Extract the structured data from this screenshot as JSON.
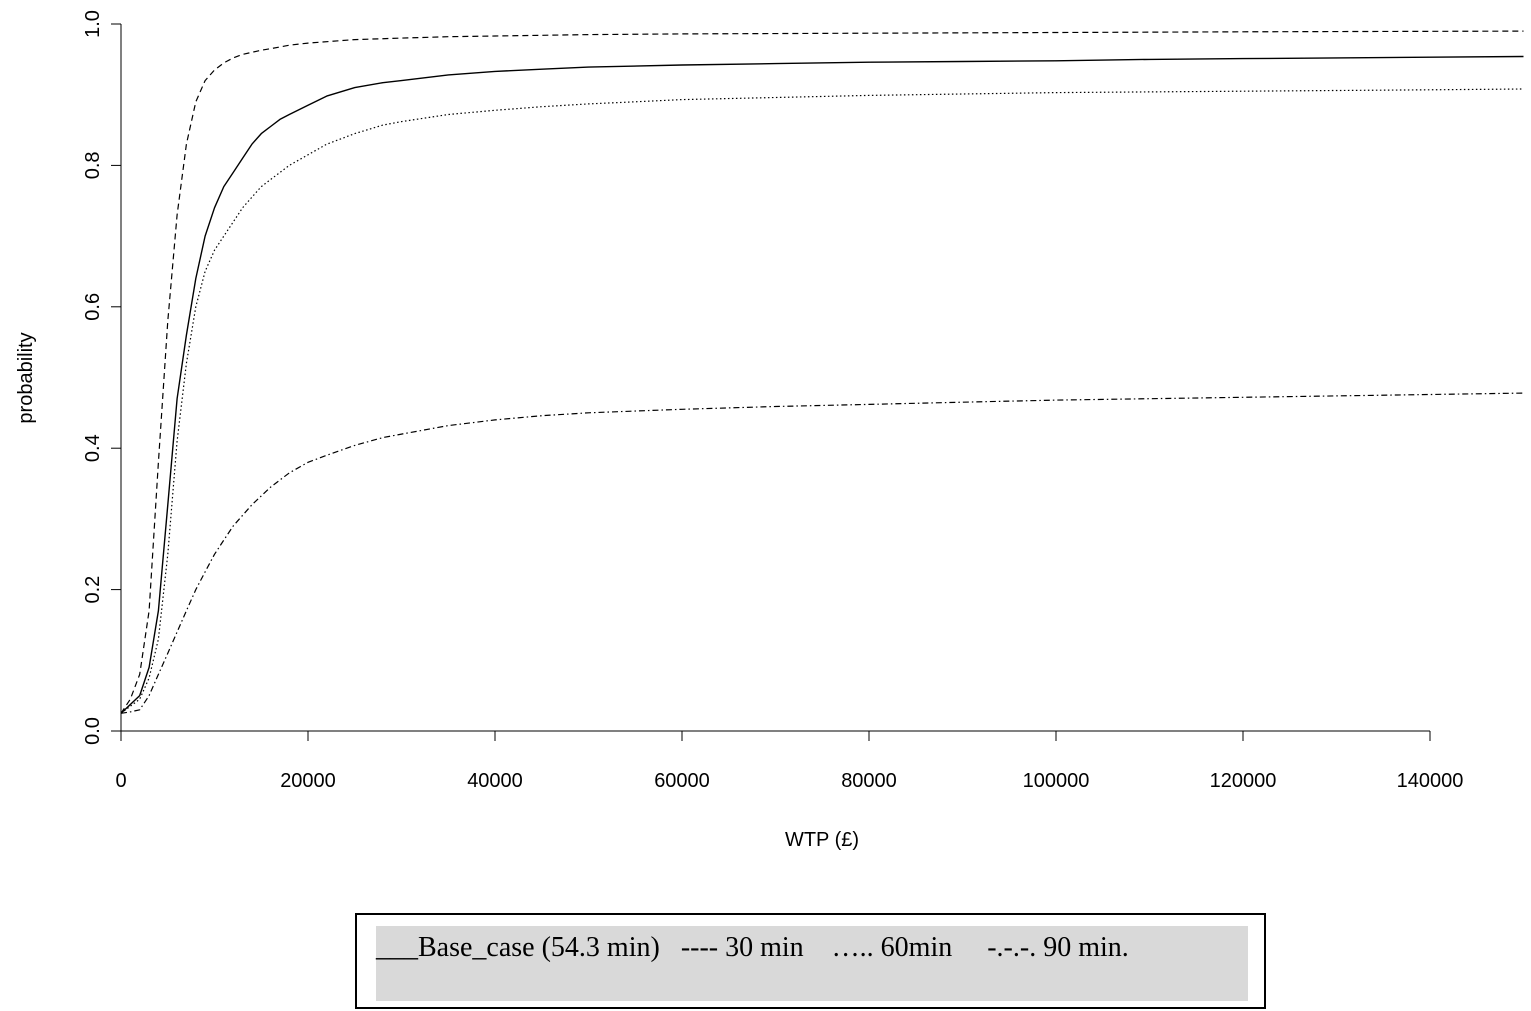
{
  "chart_data": {
    "type": "line",
    "title": "",
    "xlabel": "WTP (£)",
    "ylabel": "probability",
    "xlim": [
      0,
      150000
    ],
    "ylim": [
      0,
      1
    ],
    "x_ticks": [
      0,
      20000,
      40000,
      60000,
      80000,
      100000,
      120000,
      140000
    ],
    "x_tick_labels": [
      "0",
      "20000",
      "40000",
      "60000",
      "80000",
      "100000",
      "120000",
      "140000"
    ],
    "y_ticks": [
      0,
      0.2,
      0.4,
      0.6,
      0.8,
      1.0
    ],
    "y_tick_labels": [
      "0.0",
      "0.2",
      "0.4",
      "0.6",
      "0.8",
      "1.0"
    ],
    "grid": false,
    "legend_text": "___Base_case (54.3 min)   ---- 30 min    ….. 60min     -.-.-. 90 min.",
    "legend_placement": "bottom-center",
    "series": [
      {
        "style": "solid",
        "x": [
          0,
          2000,
          3000,
          4000,
          5000,
          6000,
          7000,
          8000,
          9000,
          10000,
          11000,
          12000,
          13000,
          14000,
          15000,
          16000,
          17000,
          18000,
          20000,
          22000,
          25000,
          28000,
          30000,
          35000,
          40000,
          45000,
          50000,
          60000,
          70000,
          80000,
          90000,
          100000,
          110000,
          120000,
          130000,
          140000,
          150000
        ],
        "y": [
          0.025,
          0.05,
          0.09,
          0.17,
          0.32,
          0.47,
          0.56,
          0.64,
          0.7,
          0.74,
          0.77,
          0.79,
          0.81,
          0.83,
          0.845,
          0.855,
          0.865,
          0.872,
          0.885,
          0.898,
          0.91,
          0.917,
          0.92,
          0.928,
          0.933,
          0.936,
          0.939,
          0.942,
          0.944,
          0.946,
          0.947,
          0.948,
          0.95,
          0.951,
          0.952,
          0.953,
          0.954
        ]
      },
      {
        "style": "dashed",
        "x": [
          0,
          1000,
          2000,
          3000,
          4000,
          5000,
          6000,
          7000,
          8000,
          9000,
          10000,
          11000,
          12000,
          13000,
          14000,
          15000,
          16000,
          18000,
          20000,
          25000,
          30000,
          35000,
          40000,
          50000,
          60000,
          80000,
          100000,
          120000,
          150000
        ],
        "y": [
          0.025,
          0.045,
          0.08,
          0.17,
          0.38,
          0.58,
          0.73,
          0.83,
          0.89,
          0.92,
          0.935,
          0.945,
          0.952,
          0.957,
          0.96,
          0.963,
          0.965,
          0.97,
          0.973,
          0.978,
          0.98,
          0.982,
          0.983,
          0.985,
          0.986,
          0.987,
          0.988,
          0.989,
          0.99
        ]
      },
      {
        "style": "dotted",
        "x": [
          0,
          2000,
          3000,
          4000,
          5000,
          6000,
          7000,
          8000,
          9000,
          10000,
          11000,
          12000,
          13000,
          14000,
          15000,
          16000,
          18000,
          20000,
          22000,
          25000,
          28000,
          30000,
          35000,
          40000,
          45000,
          50000,
          55000,
          60000,
          70000,
          80000,
          90000,
          100000,
          120000,
          140000,
          150000
        ],
        "y": [
          0.025,
          0.045,
          0.075,
          0.13,
          0.25,
          0.41,
          0.52,
          0.6,
          0.65,
          0.68,
          0.7,
          0.72,
          0.74,
          0.755,
          0.77,
          0.78,
          0.8,
          0.815,
          0.83,
          0.845,
          0.857,
          0.862,
          0.872,
          0.878,
          0.883,
          0.887,
          0.89,
          0.893,
          0.896,
          0.899,
          0.901,
          0.903,
          0.905,
          0.907,
          0.908
        ]
      },
      {
        "style": "dash-dot",
        "x": [
          0,
          1000,
          2000,
          3000,
          4000,
          5000,
          6000,
          7000,
          8000,
          9000,
          10000,
          11000,
          12000,
          14000,
          16000,
          18000,
          20000,
          22000,
          25000,
          28000,
          30000,
          35000,
          40000,
          45000,
          50000,
          60000,
          70000,
          80000,
          90000,
          100000,
          110000,
          120000,
          130000,
          140000,
          150000
        ],
        "y": [
          0.025,
          0.027,
          0.03,
          0.05,
          0.08,
          0.11,
          0.14,
          0.17,
          0.2,
          0.225,
          0.25,
          0.27,
          0.29,
          0.32,
          0.345,
          0.365,
          0.38,
          0.39,
          0.404,
          0.415,
          0.42,
          0.432,
          0.44,
          0.446,
          0.45,
          0.455,
          0.459,
          0.462,
          0.465,
          0.468,
          0.47,
          0.472,
          0.474,
          0.476,
          0.478
        ]
      }
    ]
  }
}
